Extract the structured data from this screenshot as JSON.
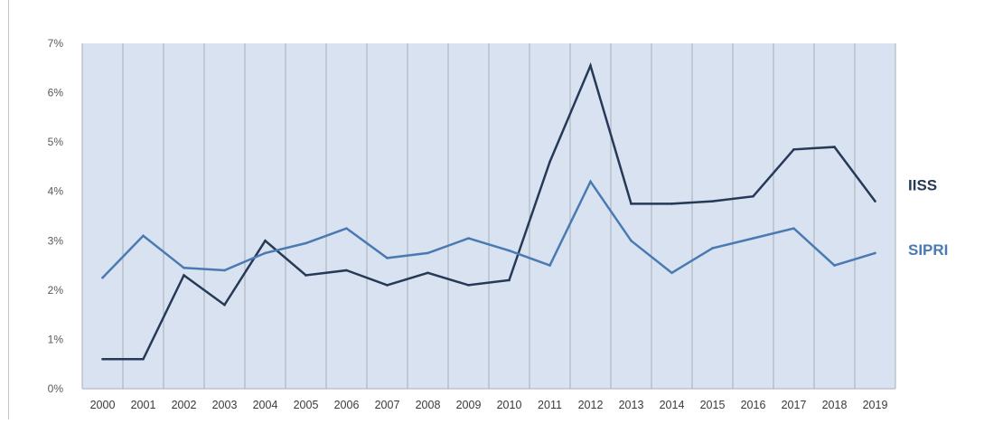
{
  "chart_data": {
    "type": "line",
    "title": "",
    "xlabel": "",
    "ylabel": "",
    "categories": [
      "2000",
      "2001",
      "2002",
      "2003",
      "2004",
      "2005",
      "2006",
      "2007",
      "2008",
      "2009",
      "2010",
      "2011",
      "2012",
      "2013",
      "2014",
      "2015",
      "2016",
      "2017",
      "2018",
      "2019"
    ],
    "y_ticks": [
      "0%",
      "1%",
      "2%",
      "3%",
      "4%",
      "5%",
      "6%",
      "7%"
    ],
    "ylim": [
      0,
      7
    ],
    "grid": "vertical",
    "legend": "right, labels at line ends",
    "series": [
      {
        "name": "IISS",
        "color": "#263a58",
        "values": [
          0.6,
          0.6,
          2.3,
          1.7,
          3.0,
          2.3,
          2.4,
          2.1,
          2.35,
          2.1,
          2.2,
          4.6,
          6.55,
          3.75,
          3.75,
          3.8,
          3.9,
          4.85,
          4.9,
          3.8
        ]
      },
      {
        "name": "SIPRI",
        "color": "#4a7ab2",
        "values": [
          2.25,
          3.1,
          2.45,
          2.4,
          2.75,
          2.95,
          3.25,
          2.65,
          2.75,
          3.05,
          2.8,
          2.5,
          4.2,
          3.0,
          2.35,
          2.85,
          3.05,
          3.25,
          2.5,
          2.75
        ]
      }
    ],
    "colors": {
      "plot_background": "#d9e2f1",
      "gridline": "#a7adb6",
      "tick_text": "#595959"
    }
  }
}
